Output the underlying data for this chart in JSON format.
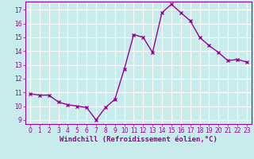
{
  "x": [
    0,
    1,
    2,
    3,
    4,
    5,
    6,
    7,
    8,
    9,
    10,
    11,
    12,
    13,
    14,
    15,
    16,
    17,
    18,
    19,
    20,
    21,
    22,
    23
  ],
  "y": [
    10.9,
    10.8,
    10.8,
    10.3,
    10.1,
    10.0,
    9.9,
    9.0,
    9.9,
    10.5,
    12.7,
    15.2,
    15.0,
    13.9,
    16.8,
    17.4,
    16.8,
    16.2,
    15.0,
    14.4,
    13.9,
    13.3,
    13.4,
    13.2
  ],
  "line_color": "#990099",
  "marker": "x",
  "marker_size": 3,
  "xlabel": "Windchill (Refroidissement éolien,°C)",
  "bg_color": "#c8ecec",
  "grid_color": "#ffffff",
  "ylim_min": 8.7,
  "ylim_max": 17.6,
  "yticks": [
    9,
    10,
    11,
    12,
    13,
    14,
    15,
    16,
    17
  ],
  "xticks": [
    0,
    1,
    2,
    3,
    4,
    5,
    6,
    7,
    8,
    9,
    10,
    11,
    12,
    13,
    14,
    15,
    16,
    17,
    18,
    19,
    20,
    21,
    22,
    23
  ],
  "tick_fontsize": 5.5,
  "xlabel_fontsize": 6.5,
  "tick_color": "#990099",
  "spine_color": "#990099",
  "linewidth": 1.0,
  "markeredgewidth": 1.0
}
